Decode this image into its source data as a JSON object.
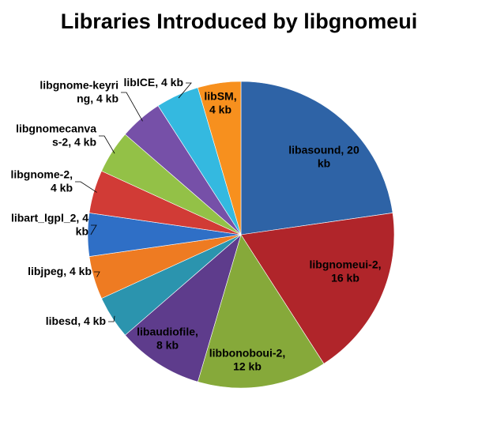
{
  "chart_data": {
    "type": "pie",
    "title": "Libraries Introduced by libgnomeui",
    "unit": "kb",
    "slices": [
      {
        "name": "libasound",
        "value": 20,
        "color": "#2E63A6",
        "label_lines": [
          "libasound, 20",
          "kb"
        ]
      },
      {
        "name": "libgnomeui-2",
        "value": 16,
        "color": "#B0252A",
        "label_lines": [
          "libgnomeui-2,",
          "16 kb"
        ]
      },
      {
        "name": "libbonoboui-2",
        "value": 12,
        "color": "#86A93A",
        "label_lines": [
          "libbonoboui-2,",
          "12 kb"
        ]
      },
      {
        "name": "libaudiofile",
        "value": 8,
        "color": "#5E3C8C",
        "label_lines": [
          "libaudiofile,",
          "8 kb"
        ]
      },
      {
        "name": "libesd",
        "value": 4,
        "color": "#2B94AE",
        "label_lines": [
          "libesd, 4 kb"
        ]
      },
      {
        "name": "libjpeg",
        "value": 4,
        "color": "#EE7B22",
        "label_lines": [
          "libjpeg, 4 kb"
        ]
      },
      {
        "name": "libart_lgpl_2",
        "value": 4,
        "color": "#2F6FC6",
        "label_lines": [
          "libart_lgpl_2, 4",
          "kb"
        ]
      },
      {
        "name": "libgnome-2",
        "value": 4,
        "color": "#D13B36",
        "label_lines": [
          "libgnome-2,",
          "4 kb"
        ]
      },
      {
        "name": "libgnomecanvas-2",
        "value": 4,
        "color": "#93C147",
        "label_lines": [
          "libgnomecanva",
          "s-2, 4 kb"
        ]
      },
      {
        "name": "libgnome-keyring",
        "value": 4,
        "color": "#7650A8",
        "label_lines": [
          "libgnome-keyri",
          "ng, 4 kb"
        ]
      },
      {
        "name": "libICE",
        "value": 4,
        "color": "#34B9E0",
        "label_lines": [
          "libICE, 4 kb"
        ]
      },
      {
        "name": "libSM",
        "value": 4,
        "color": "#F7901E",
        "label_lines": [
          "libSM,",
          "4 kb"
        ]
      }
    ],
    "legend": "none"
  }
}
